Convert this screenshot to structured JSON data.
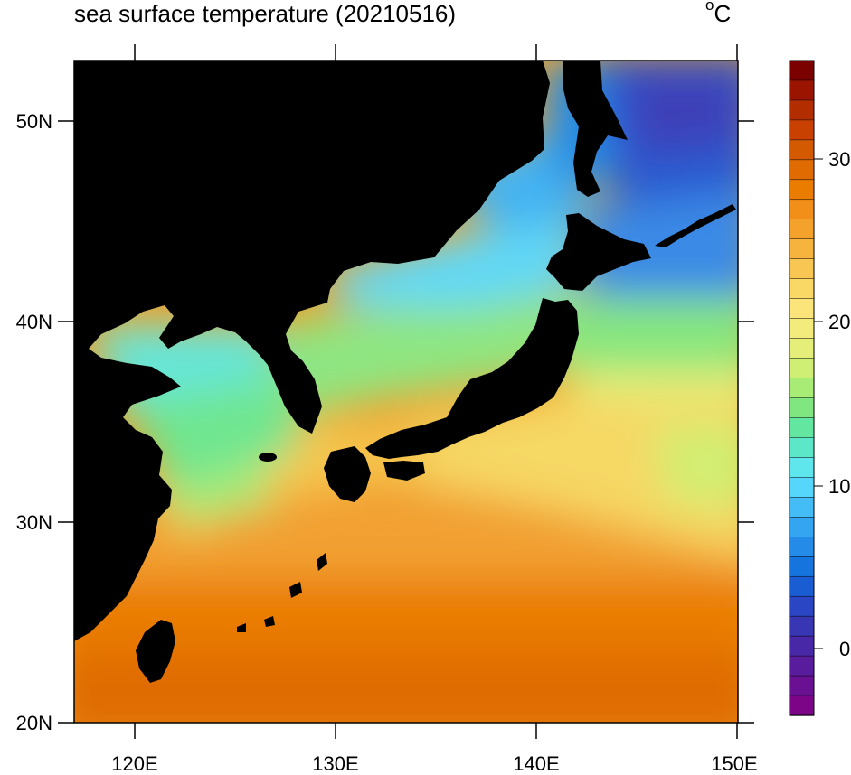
{
  "map": {
    "title": "sea surface temperature (20210516)",
    "units": {
      "degree_symbol": "o",
      "letter": "C"
    },
    "lon_labels": [
      "120E",
      "130E",
      "140E",
      "150E"
    ],
    "lat_labels": [
      "50N",
      "40N",
      "30N",
      "20N"
    ],
    "colorbar": {
      "labels": [
        "30",
        "20",
        "10",
        "0"
      ],
      "colors": [
        "#7b0000",
        "#9a1400",
        "#b22d00",
        "#c84100",
        "#d35a00",
        "#e06b00",
        "#ea7d00",
        "#f28f18",
        "#f5a22c",
        "#f6b43e",
        "#f8c652",
        "#fad866",
        "#fbe57a",
        "#f3ec7c",
        "#e4ee78",
        "#cfef74",
        "#a8ec76",
        "#7fe680",
        "#62e6a0",
        "#5ce8c8",
        "#5ee6ec",
        "#56d6fa",
        "#44bdf6",
        "#34a5f0",
        "#248ce8",
        "#1674de",
        "#1a5cd2",
        "#2a46c4",
        "#3836b2",
        "#4828a6",
        "#581c9c",
        "#6a1092",
        "#7c0486"
      ]
    },
    "land_color": "#000000"
  }
}
